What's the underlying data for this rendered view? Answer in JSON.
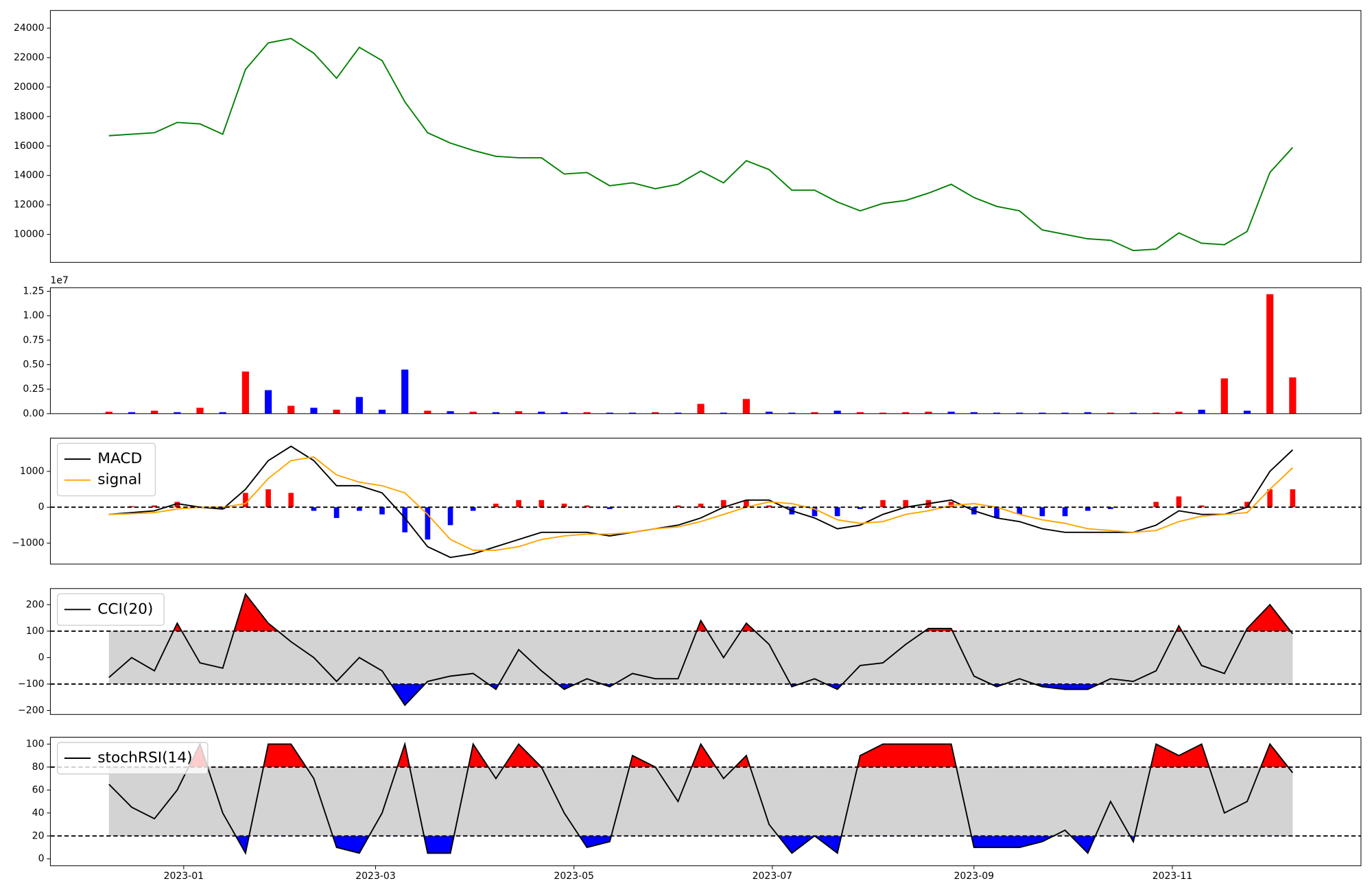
{
  "chart_data": [
    {
      "type": "line",
      "x": [
        19335,
        19342,
        19349,
        19356,
        19363,
        19370,
        19377,
        19384,
        19391,
        19398,
        19405,
        19412,
        19419,
        19426,
        19433,
        19440,
        19447,
        19454,
        19461,
        19468,
        19475,
        19482,
        19489,
        19496,
        19503,
        19510,
        19517,
        19524,
        19531,
        19538,
        19545,
        19552,
        19559,
        19566,
        19573,
        19580,
        19587,
        19594,
        19601,
        19608,
        19615,
        19622,
        19629,
        19636,
        19643,
        19650,
        19657,
        19664,
        19671,
        19678,
        19685,
        19692,
        19699
      ],
      "xlim": [
        19317,
        19720
      ],
      "values": [
        16700,
        16800,
        16900,
        17600,
        17500,
        16800,
        21200,
        23000,
        23300,
        22300,
        20600,
        22700,
        21800,
        19000,
        16900,
        16200,
        15700,
        15300,
        15200,
        15200,
        14100,
        14200,
        13300,
        13500,
        13100,
        13400,
        14300,
        13500,
        15000,
        14400,
        13000,
        13000,
        12200,
        11600,
        12100,
        12300,
        12800,
        13400,
        12500,
        11900,
        11600,
        10300,
        10000,
        9700,
        9600,
        8900,
        9000,
        10100,
        9400,
        9300,
        10200,
        14200,
        15900
      ],
      "color": "green",
      "ylim": [
        8100,
        25200
      ],
      "yticks": [
        10000,
        12000,
        14000,
        16000,
        18000,
        20000,
        22000,
        24000
      ]
    },
    {
      "type": "bar",
      "values": [
        200000,
        150000,
        300000,
        150000,
        600000,
        150000,
        4300000,
        2400000,
        800000,
        600000,
        400000,
        1700000,
        400000,
        4500000,
        300000,
        250000,
        200000,
        150000,
        250000,
        200000,
        150000,
        150000,
        100000,
        100000,
        150000,
        100000,
        1000000,
        100000,
        1500000,
        200000,
        100000,
        150000,
        300000,
        150000,
        100000,
        150000,
        200000,
        200000,
        150000,
        100000,
        100000,
        100000,
        100000,
        150000,
        100000,
        100000,
        100000,
        200000,
        400000,
        3600000,
        300000,
        12200000,
        3700000
      ],
      "colors": [
        "red",
        "blue",
        "red",
        "blue",
        "red",
        "blue",
        "red",
        "blue",
        "red",
        "blue",
        "red",
        "blue",
        "blue",
        "blue",
        "red",
        "blue",
        "red",
        "blue",
        "red",
        "blue",
        "blue",
        "red",
        "blue",
        "blue",
        "red",
        "blue",
        "red",
        "blue",
        "red",
        "blue",
        "blue",
        "red",
        "blue",
        "red",
        "red",
        "red",
        "red",
        "blue",
        "blue",
        "blue",
        "blue",
        "blue",
        "blue",
        "blue",
        "red",
        "blue",
        "red",
        "red",
        "blue",
        "red",
        "blue",
        "red",
        "red"
      ],
      "ylim": [
        0,
        12860000
      ],
      "yticks": [
        {
          "value": 0,
          "label": "0.00"
        },
        {
          "value": 2500000,
          "label": "0.25"
        },
        {
          "value": 5000000,
          "label": "0.50"
        },
        {
          "value": 7500000,
          "label": "0.75"
        },
        {
          "value": 10000000,
          "label": "1.00"
        },
        {
          "value": 12500000,
          "label": "1.25"
        }
      ],
      "offset_label": "1e7"
    },
    {
      "type": "line",
      "series": [
        {
          "name": "MACD",
          "color": "black",
          "values": [
            -200,
            -150,
            -100,
            100,
            0,
            -50,
            500,
            1300,
            1700,
            1300,
            600,
            600,
            400,
            -300,
            -1100,
            -1400,
            -1300,
            -1100,
            -900,
            -700,
            -700,
            -700,
            -800,
            -700,
            -600,
            -500,
            -300,
            0,
            200,
            200,
            -100,
            -300,
            -600,
            -500,
            -200,
            0,
            100,
            200,
            -100,
            -300,
            -400,
            -600,
            -700,
            -700,
            -700,
            -700,
            -500,
            -100,
            -200,
            -200,
            0,
            1000,
            1600
          ]
        },
        {
          "name": "signal",
          "color": "orange",
          "values": [
            -200,
            -180,
            -150,
            -50,
            0,
            0,
            100,
            800,
            1300,
            1400,
            900,
            700,
            600,
            400,
            -200,
            -900,
            -1200,
            -1200,
            -1100,
            -900,
            -800,
            -750,
            -750,
            -700,
            -600,
            -550,
            -400,
            -200,
            0,
            150,
            100,
            -50,
            -350,
            -450,
            -400,
            -200,
            -100,
            50,
            100,
            0,
            -200,
            -350,
            -450,
            -600,
            -650,
            -700,
            -650,
            -400,
            -250,
            -200,
            -150,
            500,
            1100
          ]
        }
      ],
      "histogram": {
        "values": [
          0,
          30,
          50,
          150,
          0,
          -50,
          400,
          500,
          400,
          -100,
          -300,
          -100,
          -200,
          -700,
          -900,
          -500,
          -100,
          100,
          200,
          200,
          100,
          50,
          -50,
          0,
          0,
          50,
          100,
          200,
          200,
          50,
          -200,
          -250,
          -250,
          -50,
          200,
          200,
          200,
          150,
          -200,
          -300,
          -200,
          -250,
          -250,
          -100,
          -50,
          0,
          150,
          300,
          50,
          0,
          150,
          500,
          500
        ],
        "positive_color": "red",
        "negative_color": "blue"
      },
      "levels": [
        0
      ],
      "ylim": [
        -1585,
        1927
      ],
      "yticks": [
        {
          "value": -1000,
          "label": "−1000"
        },
        0,
        1000
      ],
      "legend": "upper left"
    },
    {
      "type": "line",
      "series": [
        {
          "name": "CCI(20)",
          "color": "black",
          "values": [
            -75,
            0,
            -50,
            130,
            -20,
            -40,
            240,
            130,
            60,
            0,
            -90,
            0,
            -50,
            -180,
            -90,
            -70,
            -60,
            -120,
            30,
            -50,
            -120,
            -80,
            -110,
            -60,
            -80,
            -80,
            140,
            0,
            130,
            50,
            -110,
            -80,
            -120,
            -30,
            -20,
            50,
            110,
            110,
            -70,
            -110,
            -80,
            -110,
            -120,
            -120,
            -80,
            -90,
            -50,
            120,
            -30,
            -60,
            110,
            200,
            90
          ]
        }
      ],
      "levels": [
        100,
        -100
      ],
      "above_color": "red",
      "below_color": "blue",
      "band_color": "lightgray",
      "ylim": [
        -215,
        261
      ],
      "yticks": [
        {
          "value": -200,
          "label": "−200"
        },
        {
          "value": -100,
          "label": "−100"
        },
        0,
        100,
        200
      ],
      "legend": "upper left"
    },
    {
      "type": "line",
      "series": [
        {
          "name": "stochRSI(14)",
          "color": "black",
          "values": [
            65,
            45,
            35,
            60,
            100,
            40,
            5,
            100,
            100,
            70,
            10,
            5,
            40,
            100,
            5,
            5,
            100,
            70,
            100,
            80,
            40,
            10,
            15,
            90,
            80,
            50,
            100,
            70,
            90,
            30,
            5,
            20,
            5,
            90,
            100,
            100,
            100,
            100,
            10,
            10,
            10,
            15,
            25,
            5,
            50,
            15,
            100,
            90,
            100,
            40,
            50,
            100,
            75
          ]
        }
      ],
      "levels": [
        80,
        20
      ],
      "above_color": "red",
      "below_color": "blue",
      "band_color": "lightgray",
      "ylim": [
        -6,
        106
      ],
      "yticks": [
        0,
        20,
        40,
        60,
        80,
        100
      ],
      "xticks": [
        {
          "value": 19358,
          "label": "2023-01"
        },
        {
          "value": 19417,
          "label": "2023-03"
        },
        {
          "value": 19478,
          "label": "2023-05"
        },
        {
          "value": 19539,
          "label": "2023-07"
        },
        {
          "value": 19601,
          "label": "2023-09"
        },
        {
          "value": 19662,
          "label": "2023-11"
        }
      ],
      "legend": "upper left"
    }
  ]
}
